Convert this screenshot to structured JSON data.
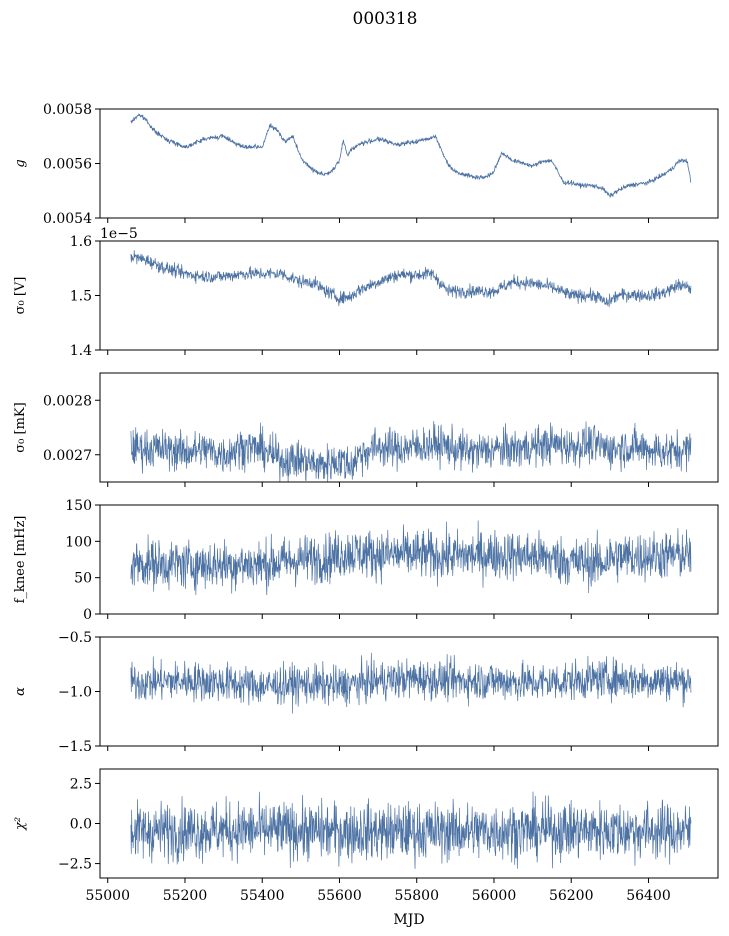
{
  "figure": {
    "title": "000318",
    "xlabel": "MJD",
    "series_color": "#4c72a4"
  },
  "chart_data": [
    {
      "type": "line",
      "ylabel": "g",
      "ylabel_italic": true,
      "ylim": [
        0.0054,
        0.0058
      ],
      "yticks": [
        0.0054,
        0.0056,
        0.0058
      ],
      "ytick_labels": [
        "0.0054",
        "0.0056",
        "0.0058"
      ],
      "offset_text": "",
      "noise": 4e-06,
      "x": [
        55060,
        55080,
        55100,
        55120,
        55150,
        55200,
        55250,
        55300,
        55350,
        55400,
        55420,
        55440,
        55460,
        55480,
        55500,
        55520,
        55540,
        55560,
        55580,
        55600,
        55610,
        55620,
        55630,
        55650,
        55700,
        55750,
        55800,
        55850,
        55860,
        55880,
        55900,
        55950,
        55980,
        56000,
        56020,
        56050,
        56080,
        56100,
        56130,
        56150,
        56180,
        56200,
        56220,
        56250,
        56280,
        56300,
        56320,
        56350,
        56400,
        56440,
        56460,
        56480,
        56500,
        56510
      ],
      "y": [
        0.00575,
        0.00578,
        0.00576,
        0.00572,
        0.00569,
        0.00566,
        0.00569,
        0.0057,
        0.00566,
        0.00566,
        0.00574,
        0.00572,
        0.00568,
        0.0057,
        0.00562,
        0.00559,
        0.00557,
        0.00556,
        0.00557,
        0.00561,
        0.00569,
        0.00563,
        0.00565,
        0.00567,
        0.00569,
        0.00567,
        0.00568,
        0.0057,
        0.00566,
        0.0056,
        0.00557,
        0.00555,
        0.00555,
        0.00557,
        0.00564,
        0.00561,
        0.0056,
        0.00559,
        0.00561,
        0.00561,
        0.00553,
        0.00553,
        0.00552,
        0.00552,
        0.00551,
        0.00548,
        0.0055,
        0.00552,
        0.00553,
        0.00556,
        0.00558,
        0.00561,
        0.00561,
        0.00553
      ]
    },
    {
      "type": "line",
      "ylabel": "σ₀ [V]",
      "ylabel_italic": false,
      "ylim": [
        1.4,
        1.6
      ],
      "yticks": [
        1.4,
        1.5,
        1.6
      ],
      "ytick_labels": [
        "1.4",
        "1.5",
        "1.6"
      ],
      "offset_text": "1e−5",
      "noise": 0.006,
      "x": [
        55060,
        55100,
        55150,
        55200,
        55250,
        55300,
        55350,
        55400,
        55450,
        55500,
        55530,
        55560,
        55600,
        55630,
        55650,
        55700,
        55750,
        55800,
        55840,
        55860,
        55880,
        55900,
        55950,
        56000,
        56050,
        56100,
        56150,
        56200,
        56250,
        56270,
        56290,
        56320,
        56350,
        56400,
        56440,
        56480,
        56510
      ],
      "y": [
        1.572,
        1.565,
        1.55,
        1.54,
        1.535,
        1.535,
        1.54,
        1.54,
        1.54,
        1.525,
        1.525,
        1.51,
        1.495,
        1.498,
        1.51,
        1.525,
        1.538,
        1.538,
        1.54,
        1.525,
        1.508,
        1.508,
        1.508,
        1.508,
        1.525,
        1.522,
        1.515,
        1.5,
        1.5,
        1.498,
        1.485,
        1.5,
        1.502,
        1.5,
        1.505,
        1.52,
        1.512
      ]
    },
    {
      "type": "line",
      "ylabel": "σ₀ [mK]",
      "ylabel_italic": false,
      "ylim": [
        0.00265,
        0.00285
      ],
      "yticks": [
        0.0027,
        0.0028
      ],
      "ytick_labels": [
        "0.0027",
        "0.0028"
      ],
      "offset_text": "",
      "noise": 1.8e-05,
      "x": [
        55060,
        55150,
        55200,
        55250,
        55300,
        55350,
        55400,
        55450,
        55500,
        55550,
        55600,
        55630,
        55650,
        55700,
        55750,
        55800,
        55850,
        55880,
        55900,
        55950,
        56000,
        56050,
        56100,
        56150,
        56200,
        56250,
        56280,
        56300,
        56350,
        56400,
        56450,
        56510
      ],
      "y": [
        0.002713,
        0.00271,
        0.002705,
        0.00271,
        0.0027,
        0.002715,
        0.00271,
        0.00269,
        0.00269,
        0.00268,
        0.00269,
        0.00268,
        0.0027,
        0.002715,
        0.00271,
        0.002715,
        0.00272,
        0.002715,
        0.00271,
        0.002705,
        0.00271,
        0.00271,
        0.002715,
        0.00272,
        0.002715,
        0.00272,
        0.002715,
        0.00271,
        0.002715,
        0.00271,
        0.002705,
        0.00271
      ]
    },
    {
      "type": "line",
      "ylabel": "f_knee [mHz]",
      "ylabel_italic": false,
      "ylim": [
        0,
        150
      ],
      "yticks": [
        0,
        50,
        100,
        150
      ],
      "ytick_labels": [
        "0",
        "50",
        "100",
        "150"
      ],
      "offset_text": "",
      "noise": 17,
      "x": [
        55060,
        55200,
        55400,
        55500,
        55580,
        55620,
        55700,
        55800,
        55850,
        55900,
        56000,
        56100,
        56200,
        56280,
        56300,
        56400,
        56510
      ],
      "y": [
        70,
        68,
        68,
        75,
        78,
        85,
        82,
        82,
        80,
        80,
        82,
        80,
        72,
        70,
        78,
        80,
        82
      ]
    },
    {
      "type": "line",
      "ylabel": "α",
      "ylabel_italic": true,
      "ylim": [
        -1.5,
        -0.5
      ],
      "yticks": [
        -1.5,
        -1.0,
        -0.5
      ],
      "ytick_labels": [
        "−1.5",
        "−1.0",
        "−0.5"
      ],
      "offset_text": "",
      "noise": 0.09,
      "x": [
        55060,
        55200,
        55300,
        55400,
        55500,
        55600,
        55700,
        55800,
        55900,
        56000,
        56100,
        56200,
        56300,
        56400,
        56510
      ],
      "y": [
        -0.92,
        -0.9,
        -0.92,
        -0.95,
        -0.93,
        -0.95,
        -0.9,
        -0.88,
        -0.9,
        -0.9,
        -0.92,
        -0.9,
        -0.88,
        -0.9,
        -0.9
      ]
    },
    {
      "type": "line",
      "ylabel": "χ²",
      "ylabel_italic": true,
      "ylim": [
        -3.4,
        3.4
      ],
      "yticks": [
        -2.5,
        0.0,
        2.5
      ],
      "ytick_labels": [
        "−2.5",
        "0.0",
        "2.5"
      ],
      "offset_text": "",
      "noise": 0.9,
      "x": [
        55060,
        55300,
        55600,
        55900,
        56200,
        56510
      ],
      "y": [
        -0.5,
        -0.4,
        -0.5,
        -0.5,
        -0.4,
        -0.5
      ]
    }
  ],
  "xaxis": {
    "xlim": [
      54980,
      56580
    ],
    "xticks": [
      55000,
      55200,
      55400,
      55600,
      55800,
      56000,
      56200,
      56400
    ],
    "xtick_labels": [
      "55000",
      "55200",
      "55400",
      "55600",
      "55800",
      "56000",
      "56200",
      "56400"
    ]
  }
}
